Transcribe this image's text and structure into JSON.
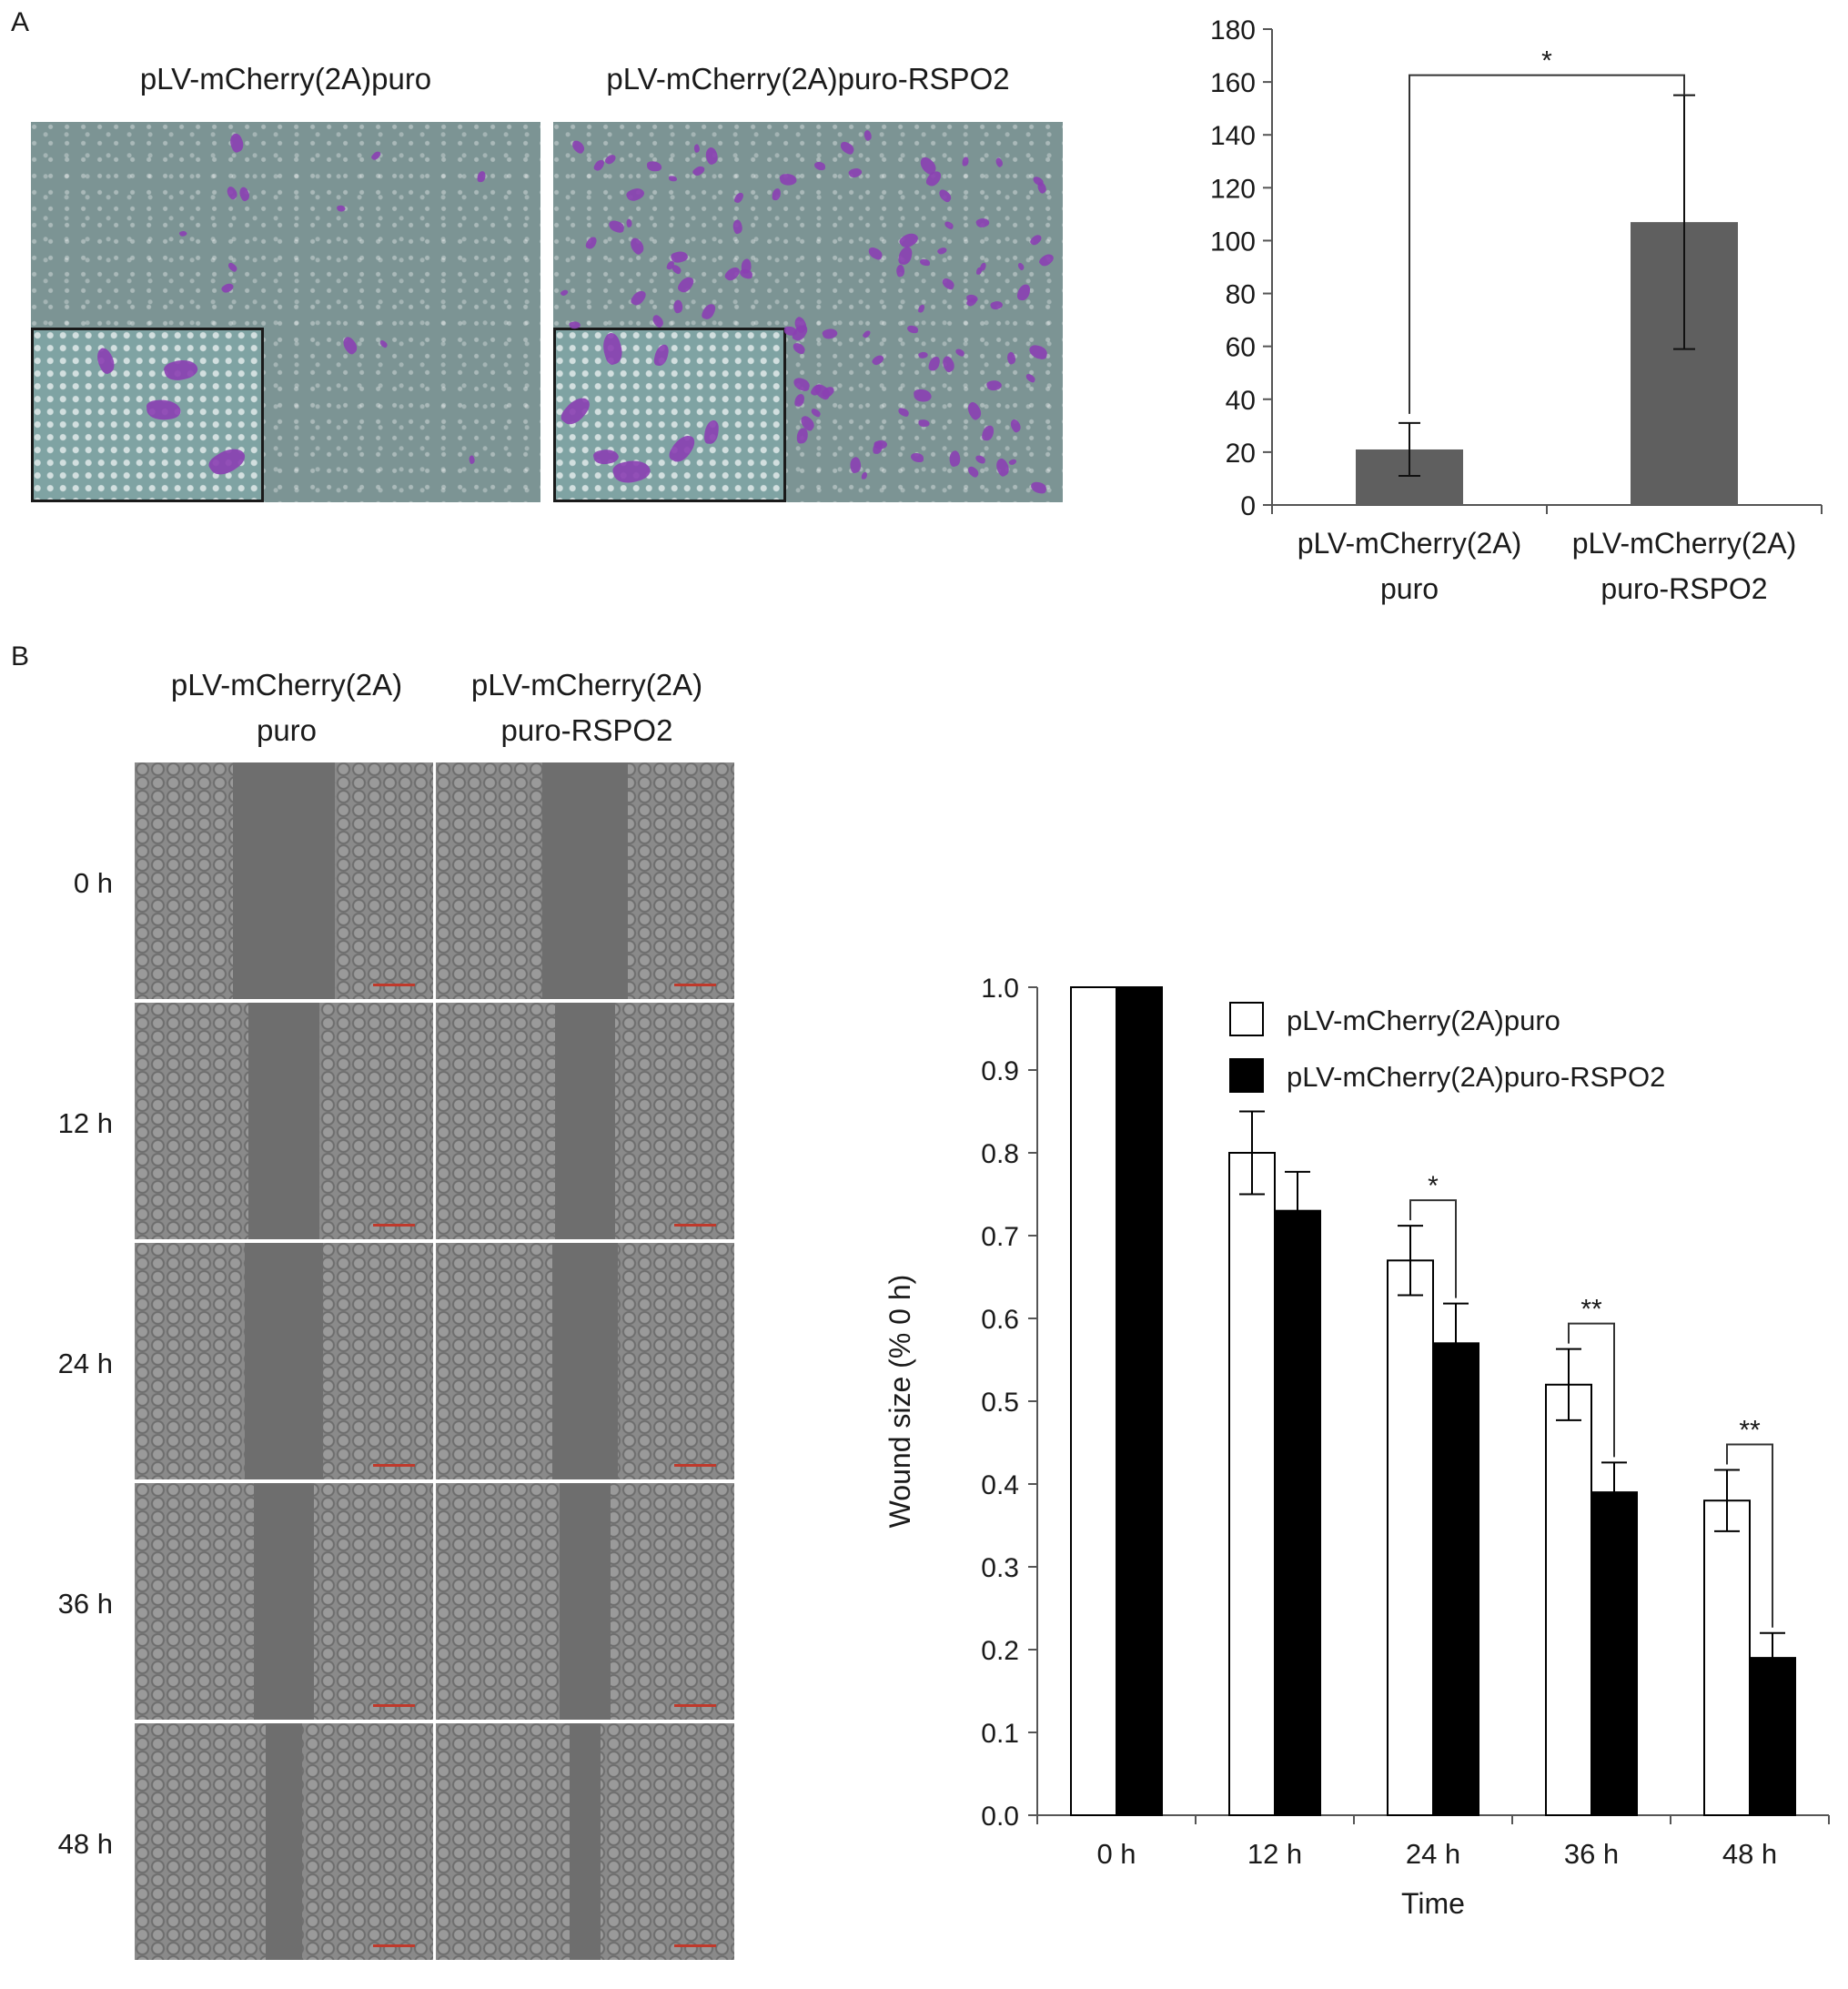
{
  "panel_a": {
    "letter": "A",
    "image_captions": [
      "pLV-mCherry(2A)puro",
      "pLV-mCherry(2A)puro-RSPO2"
    ]
  },
  "panel_b": {
    "letter": "B",
    "column_headers": [
      "pLV-mCherry(2A)\npuro",
      "pLV-mCherry(2A)\npuro-RSPO2"
    ],
    "row_labels": [
      "0 h",
      "12 h",
      "24 h",
      "36 h",
      "48 h"
    ],
    "wound_gap_fraction": [
      0.34,
      0.24,
      0.26,
      0.2,
      0.12
    ]
  },
  "colors": {
    "bar_gray": "#5f5f5f",
    "bar_black": "#000000",
    "bar_white": "#ffffff",
    "stain_purple": "#8b3fb3"
  },
  "chart_data": [
    {
      "type": "bar",
      "categories": [
        "pLV-mCherry(2A)\npuro",
        "pLV-mCherry(2A)\npuro-RSPO2"
      ],
      "values": [
        21,
        107
      ],
      "error": [
        [
          11,
          31
        ],
        [
          59,
          155
        ]
      ],
      "ylim": [
        0,
        180
      ],
      "yticks": [
        0,
        20,
        40,
        60,
        80,
        100,
        120,
        140,
        160,
        180
      ],
      "significance": [
        {
          "between": [
            0,
            1
          ],
          "label": "*"
        }
      ],
      "grid": false
    },
    {
      "type": "bar",
      "categories": [
        "0 h",
        "12 h",
        "24 h",
        "36 h",
        "48 h"
      ],
      "series": [
        {
          "name": "pLV-mCherry(2A)puro",
          "values": [
            1.0,
            0.8,
            0.67,
            0.52,
            0.38
          ],
          "errors": [
            0,
            0.05,
            0.042,
            0.043,
            0.037
          ],
          "fill": "#ffffff"
        },
        {
          "name": "pLV-mCherry(2A)puro-RSPO2",
          "values": [
            1.0,
            0.73,
            0.57,
            0.39,
            0.19
          ],
          "errors": [
            0,
            0.047,
            0.048,
            0.036,
            0.03
          ],
          "fill": "#000000"
        }
      ],
      "xlabel": "Time",
      "ylabel": "Wound size (% 0 h)",
      "ylim": [
        0,
        1.0
      ],
      "yticks": [
        "0.0",
        "0.1",
        "0.2",
        "0.3",
        "0.4",
        "0.5",
        "0.6",
        "0.7",
        "0.8",
        "0.9",
        "1.0"
      ],
      "significance": [
        {
          "category": 2,
          "label": "*"
        },
        {
          "category": 3,
          "label": "**"
        },
        {
          "category": 4,
          "label": "**"
        }
      ],
      "legend": "top-right",
      "grid": false
    }
  ]
}
